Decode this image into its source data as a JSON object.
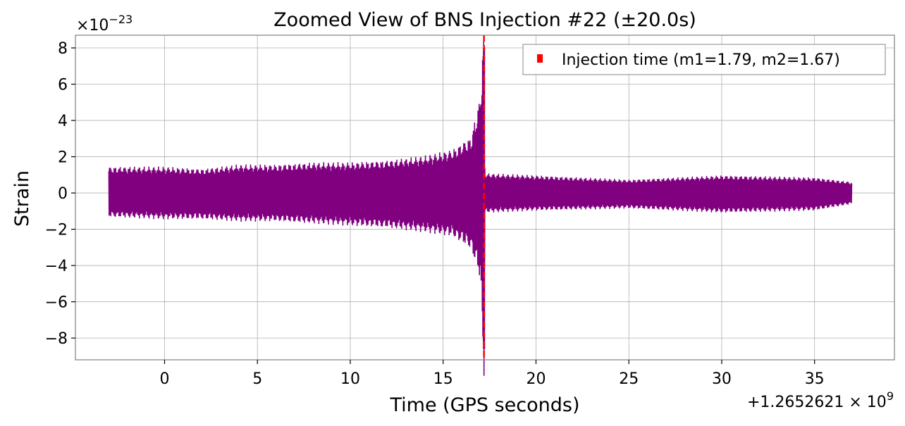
{
  "chart_data": {
    "type": "line",
    "title": "Zoomed View of BNS Injection #22 (±20.0s)",
    "xlabel": "Time (GPS seconds)",
    "ylabel": "Strain",
    "x_offset_label": "+1.2652621 × 10",
    "x_offset_exponent": "9",
    "y_scale_label": "×10",
    "y_scale_exponent": "−23",
    "xlim": [
      -4.8,
      39.3
    ],
    "ylim": [
      -9.2,
      8.7
    ],
    "x_ticks": [
      0,
      5,
      10,
      15,
      20,
      25,
      30,
      35
    ],
    "x_tick_labels": [
      "0",
      "5",
      "10",
      "15",
      "20",
      "25",
      "30",
      "35"
    ],
    "y_ticks": [
      -8,
      -6,
      -4,
      -2,
      0,
      2,
      4,
      6,
      8
    ],
    "y_tick_labels": [
      "−8",
      "−6",
      "−4",
      "−2",
      "0",
      "2",
      "4",
      "6",
      "8"
    ],
    "grid": true,
    "legend_position": "top-right",
    "series": [
      {
        "kind": "strain",
        "color": "#800080",
        "envelope": [
          {
            "x": -3.0,
            "upper": 1.2,
            "lower": -1.1
          },
          {
            "x": 0.0,
            "upper": 1.2,
            "lower": -1.2
          },
          {
            "x": 2.0,
            "upper": 1.1,
            "lower": -1.2
          },
          {
            "x": 4.0,
            "upper": 1.3,
            "lower": -1.3
          },
          {
            "x": 6.0,
            "upper": 1.3,
            "lower": -1.3
          },
          {
            "x": 8.0,
            "upper": 1.4,
            "lower": -1.4
          },
          {
            "x": 10.0,
            "upper": 1.4,
            "lower": -1.5
          },
          {
            "x": 12.0,
            "upper": 1.5,
            "lower": -1.6
          },
          {
            "x": 14.0,
            "upper": 1.7,
            "lower": -1.8
          },
          {
            "x": 15.5,
            "upper": 2.0,
            "lower": -2.0
          },
          {
            "x": 16.5,
            "upper": 2.6,
            "lower": -2.6
          },
          {
            "x": 17.0,
            "upper": 4.5,
            "lower": -4.0
          },
          {
            "x": 17.2,
            "upper": 8.0,
            "lower": -8.6
          },
          {
            "x": 17.25,
            "upper": 0.9,
            "lower": -0.9
          },
          {
            "x": 20.0,
            "upper": 0.8,
            "lower": -0.8
          },
          {
            "x": 25.0,
            "upper": 0.6,
            "lower": -0.7
          },
          {
            "x": 30.0,
            "upper": 0.8,
            "lower": -0.9
          },
          {
            "x": 35.0,
            "upper": 0.7,
            "lower": -0.8
          },
          {
            "x": 37.0,
            "upper": 0.5,
            "lower": -0.5
          }
        ]
      },
      {
        "name": "Injection time (m1=1.79, m2=1.67)",
        "kind": "vline",
        "x": 17.2,
        "color": "#ff0000",
        "style": "dashed"
      }
    ]
  }
}
